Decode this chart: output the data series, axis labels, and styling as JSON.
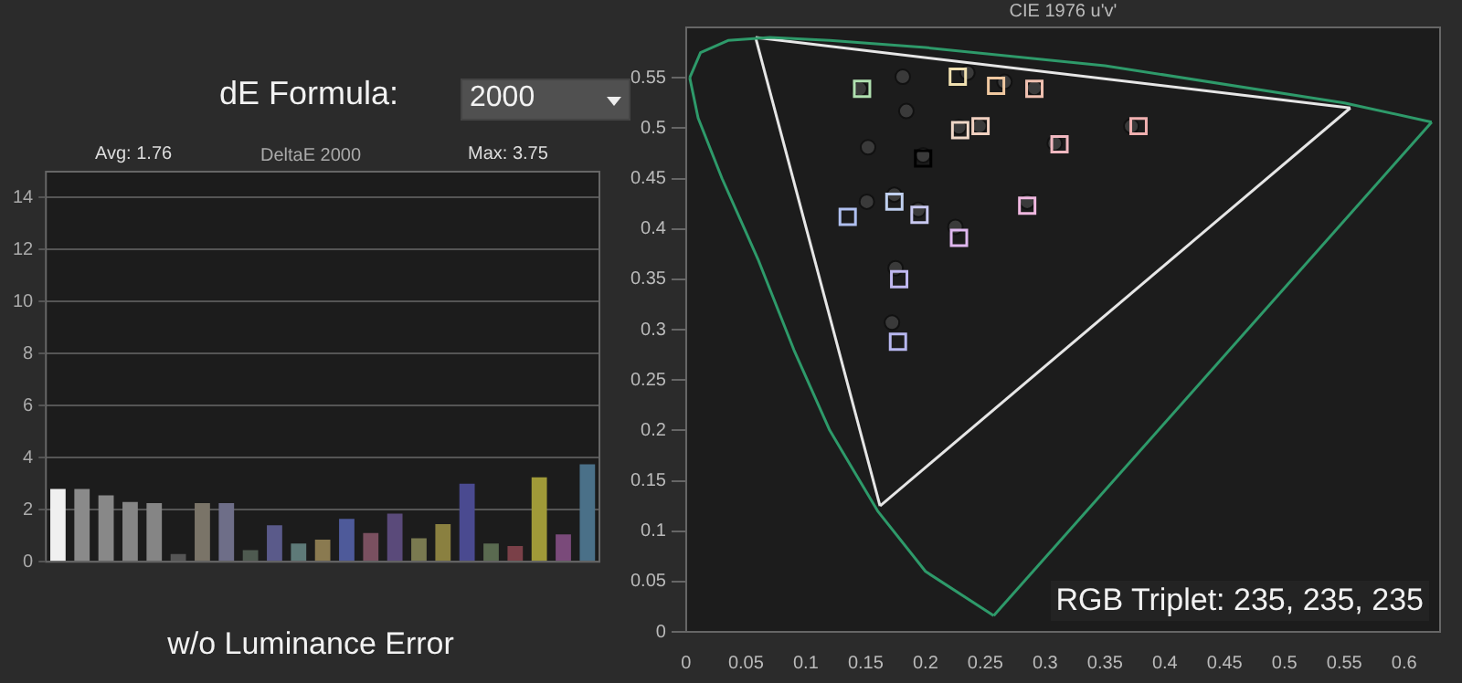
{
  "chart_data": [
    {
      "type": "bar",
      "title": "DeltaE 2000",
      "xlabel": "w/o Luminance Error",
      "annotations": [
        "Avg: 1.76",
        "Max: 3.75",
        "dE Formula:",
        "2000"
      ],
      "categories": [
        null,
        null,
        null,
        null,
        null,
        null,
        null,
        null,
        null,
        null,
        null,
        null,
        null,
        null,
        null,
        null,
        null,
        null,
        null,
        null,
        null,
        null,
        null
      ],
      "values": [
        2.8,
        2.8,
        2.55,
        2.3,
        2.25,
        0.3,
        2.25,
        2.25,
        0.45,
        1.4,
        0.7,
        0.85,
        1.65,
        1.1,
        1.85,
        0.9,
        1.45,
        3.0,
        0.7,
        0.6,
        3.25,
        1.05,
        3.75
      ],
      "colors": [
        "#f0f0f0",
        "#8a8a8a",
        "#888888",
        "#858585",
        "#858585",
        "#555555",
        "#7a7468",
        "#6e6e88",
        "#4e5a50",
        "#5a5a8a",
        "#5e7a78",
        "#8a7a50",
        "#4e5a9a",
        "#7a5060",
        "#5a4a7a",
        "#7a7a50",
        "#8a8040",
        "#4a4a90",
        "#5a6a50",
        "#7a4048",
        "#a09a38",
        "#7a4a7a",
        "#4a7088"
      ],
      "ylim": [
        0,
        15
      ],
      "yticks": [
        0,
        2,
        4,
        6,
        8,
        10,
        12,
        14
      ],
      "grid": "y",
      "legend": false
    },
    {
      "type": "scatter",
      "title": "CIE 1976 u'v'",
      "annotations": [
        "RGB Triplet: 235, 235, 235"
      ],
      "xlim": [
        0,
        0.63
      ],
      "xticks": [
        0,
        0.05,
        0.1,
        0.15,
        0.2,
        0.25,
        0.3,
        0.35,
        0.4,
        0.45,
        0.5,
        0.55,
        0.6
      ],
      "ylim": [
        0,
        0.6
      ],
      "yticks": [
        0,
        0.05,
        0.1,
        0.15,
        0.2,
        0.25,
        0.3,
        0.35,
        0.4,
        0.45,
        0.5,
        0.55
      ],
      "grid": false,
      "legend": false,
      "series": [
        {
          "type": "line",
          "marker": "none",
          "color": "#2e9a6a",
          "x": [
            0.003,
            0.01,
            0.03,
            0.06,
            0.09,
            0.12,
            0.16,
            0.2,
            0.257
          ],
          "values": [
            0.55,
            0.51,
            0.45,
            0.37,
            0.28,
            0.2,
            0.12,
            0.06,
            0.016
          ]
        },
        {
          "type": "line",
          "marker": "none",
          "color": "#2e9a6a",
          "x": [
            0.003,
            0.012,
            0.035,
            0.07,
            0.12,
            0.2,
            0.35,
            0.55,
            0.623
          ],
          "values": [
            0.55,
            0.575,
            0.587,
            0.59,
            0.587,
            0.58,
            0.562,
            0.525,
            0.506
          ]
        },
        {
          "type": "line",
          "marker": "none",
          "color": "#2e9a6a",
          "x": [
            0.257,
            0.623
          ],
          "values": [
            0.016,
            0.506
          ]
        },
        {
          "type": "line",
          "marker": "none",
          "color": "#e6e6e6",
          "x": [
            0.058,
            0.555
          ],
          "values": [
            0.59,
            0.52
          ]
        },
        {
          "type": "line",
          "marker": "none",
          "color": "#e6e6e6",
          "x": [
            0.058,
            0.162
          ],
          "values": [
            0.59,
            0.125
          ]
        },
        {
          "type": "line",
          "marker": "none",
          "color": "#e6e6e6",
          "x": [
            0.162,
            0.555
          ],
          "values": [
            0.125,
            0.52
          ]
        },
        {
          "marker": "square",
          "x": [
            0.147,
            0.227,
            0.259,
            0.291,
            0.378,
            0.229,
            0.246,
            0.312,
            0.198,
            0.135,
            0.174,
            0.195,
            0.285,
            0.228,
            0.178,
            0.177
          ],
          "values": [
            0.539,
            0.551,
            0.542,
            0.539,
            0.502,
            0.498,
            0.502,
            0.484,
            0.47,
            0.412,
            0.427,
            0.414,
            0.423,
            0.391,
            0.35,
            0.288
          ],
          "colors": [
            "#b0e0b0",
            "#f0e0b0",
            "#f0c8a0",
            "#f0c0b0",
            "#f0b0b0",
            "#f0d8c8",
            "#f0d0c0",
            "#f0b8c0",
            "#000000",
            "#b0c0f0",
            "#c0d0f0",
            "#c8c8f0",
            "#f0b8e0",
            "#e0b8f0",
            "#c0b8f0",
            "#b8b8f0"
          ]
        },
        {
          "marker": "circle",
          "color": "#3a3a3a",
          "x": [
            0.145,
            0.181,
            0.235,
            0.266,
            0.291,
            0.184,
            0.228,
            0.245,
            0.152,
            0.198,
            0.308,
            0.372,
            0.151,
            0.174,
            0.194,
            0.285,
            0.225,
            0.175,
            0.172
          ],
          "values": [
            0.539,
            0.551,
            0.555,
            0.546,
            0.54,
            0.517,
            0.501,
            0.502,
            0.481,
            0.473,
            0.485,
            0.502,
            0.427,
            0.434,
            0.419,
            0.427,
            0.402,
            0.361,
            0.307
          ]
        }
      ]
    }
  ]
}
